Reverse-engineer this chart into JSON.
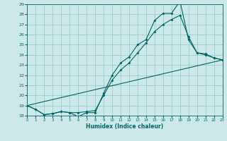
{
  "xlabel": "Humidex (Indice chaleur)",
  "bg_color": "#cce8e8",
  "grid_color": "#99cccc",
  "line_color": "#006666",
  "xlim": [
    0,
    23
  ],
  "ylim": [
    18,
    29
  ],
  "xticks": [
    0,
    1,
    2,
    3,
    4,
    5,
    6,
    7,
    8,
    9,
    10,
    11,
    12,
    13,
    14,
    15,
    16,
    17,
    18,
    19,
    20,
    21,
    22,
    23
  ],
  "yticks": [
    18,
    19,
    20,
    21,
    22,
    23,
    24,
    25,
    26,
    27,
    28,
    29
  ],
  "line1_x": [
    0,
    1,
    2,
    3,
    4,
    5,
    6,
    7,
    8,
    9,
    10,
    11,
    12,
    13,
    14,
    15,
    16,
    17,
    18,
    19,
    20,
    21,
    22,
    23
  ],
  "line1_y": [
    19.0,
    18.6,
    18.1,
    18.2,
    18.4,
    18.3,
    17.9,
    18.3,
    18.3,
    20.2,
    22.0,
    23.2,
    23.8,
    25.0,
    25.5,
    27.4,
    28.1,
    28.1,
    29.3,
    25.5,
    24.2,
    24.1,
    23.7,
    23.5
  ],
  "line2_x": [
    0,
    1,
    2,
    3,
    4,
    5,
    6,
    7,
    8,
    9,
    10,
    11,
    12,
    13,
    14,
    15,
    16,
    17,
    18,
    19,
    20,
    21,
    22,
    23
  ],
  "line2_y": [
    19.0,
    18.6,
    18.1,
    18.2,
    18.4,
    18.3,
    18.3,
    18.4,
    18.5,
    20.0,
    21.5,
    22.5,
    23.2,
    24.2,
    25.2,
    26.3,
    27.0,
    27.5,
    27.9,
    25.8,
    24.2,
    24.0,
    23.7,
    23.5
  ],
  "line3_x": [
    0,
    23
  ],
  "line3_y": [
    19.0,
    23.5
  ]
}
